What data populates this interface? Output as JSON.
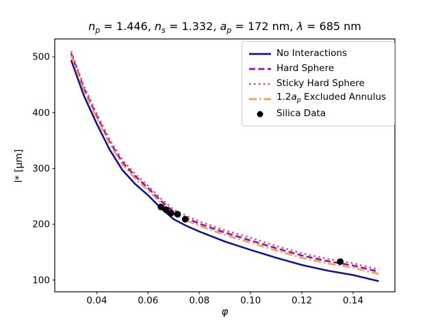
{
  "figure": {
    "title_segments": [
      {
        "t": "n",
        "i": 1
      },
      {
        "t": "p",
        "i": 1,
        "s": 1
      },
      {
        "t": " = 1.446, "
      },
      {
        "t": "n",
        "i": 1
      },
      {
        "t": "s",
        "i": 1,
        "s": 1
      },
      {
        "t": " = 1.332, "
      },
      {
        "t": "a",
        "i": 1
      },
      {
        "t": "p",
        "i": 1,
        "s": 1
      },
      {
        "t": " = 172 nm, "
      },
      {
        "t": "λ",
        "i": 1
      },
      {
        "t": " = 685 nm"
      }
    ],
    "xlabel_segments": [
      {
        "t": "φ",
        "i": 1
      }
    ],
    "ylabel": "l* [μm]"
  },
  "chart_data": {
    "type": "line",
    "title": "n_p = 1.446, n_s = 1.332, a_p = 172 nm, λ = 685 nm",
    "xlabel": "φ",
    "ylabel": "l* [μm]",
    "xlim": [
      0.0236,
      0.1563
    ],
    "ylim": [
      79,
      532
    ],
    "xticks": [
      0.04,
      0.06,
      0.08,
      0.1,
      0.12,
      0.14
    ],
    "xtick_labels": [
      "0.04",
      "0.06",
      "0.08",
      "0.10",
      "0.12",
      "0.14"
    ],
    "yticks": [
      100,
      200,
      300,
      400,
      500
    ],
    "ytick_labels": [
      "100",
      "200",
      "300",
      "400",
      "500"
    ],
    "grid": false,
    "legend_position": "upper right",
    "x": [
      0.03,
      0.035,
      0.04,
      0.045,
      0.05,
      0.055,
      0.06,
      0.065,
      0.07,
      0.075,
      0.08,
      0.09,
      0.1,
      0.11,
      0.12,
      0.13,
      0.14,
      0.15
    ],
    "series": [
      {
        "name": "No Interactions",
        "color": "#12128e",
        "linestyle": "solid",
        "values": [
          494,
          430,
          380,
          334,
          297,
          272,
          252,
          229,
          209,
          197,
          187,
          169,
          154,
          140,
          127,
          117,
          109,
          98
        ]
      },
      {
        "name": "Hard Sphere",
        "color": "#8e0dad",
        "linestyle": "dashed",
        "values": [
          506,
          443,
          394,
          348,
          311,
          286,
          265,
          242,
          222,
          211,
          201,
          185,
          171,
          157,
          144,
          134,
          126,
          115
        ]
      },
      {
        "name": "Sticky Hard Sphere",
        "color": "#d5517e",
        "linestyle": "dotted",
        "values": [
          510,
          447,
          398,
          352,
          315,
          290,
          269,
          246,
          226,
          215,
          205,
          189,
          176,
          161,
          148,
          138,
          130,
          119
        ]
      },
      {
        "name": "1.2ap Excluded Annulus",
        "color": "#f79b4d",
        "linestyle": "dashdot",
        "values": [
          502,
          439,
          390,
          344,
          307,
          282,
          261,
          238,
          218,
          207,
          197,
          181,
          167,
          153,
          140,
          130,
          122,
          111
        ]
      }
    ],
    "scatter": {
      "name": "Silica Data",
      "color": "#000000",
      "points": [
        [
          0.065,
          231
        ],
        [
          0.067,
          226
        ],
        [
          0.069,
          220
        ],
        [
          0.0715,
          218
        ],
        [
          0.0745,
          209
        ],
        [
          0.135,
          133
        ]
      ]
    }
  },
  "legend": {
    "items": [
      {
        "swatch": "line-solid",
        "color": "#12128e",
        "label_segments": [
          {
            "t": "No Interactions"
          }
        ]
      },
      {
        "swatch": "line-dashed",
        "color": "#8e0dad",
        "label_segments": [
          {
            "t": "Hard Sphere"
          }
        ]
      },
      {
        "swatch": "line-dotted",
        "color": "#d5517e",
        "label_segments": [
          {
            "t": "Sticky Hard Sphere"
          }
        ]
      },
      {
        "swatch": "line-dashdot",
        "color": "#f79b4d",
        "label_segments": [
          {
            "t": "1.2"
          },
          {
            "t": "a",
            "i": 1
          },
          {
            "t": "p",
            "i": 1,
            "s": 1
          },
          {
            "t": " Excluded Annulus"
          }
        ]
      },
      {
        "swatch": "marker-dot",
        "color": "#000000",
        "label_segments": [
          {
            "t": "Silica Data"
          }
        ]
      }
    ]
  }
}
